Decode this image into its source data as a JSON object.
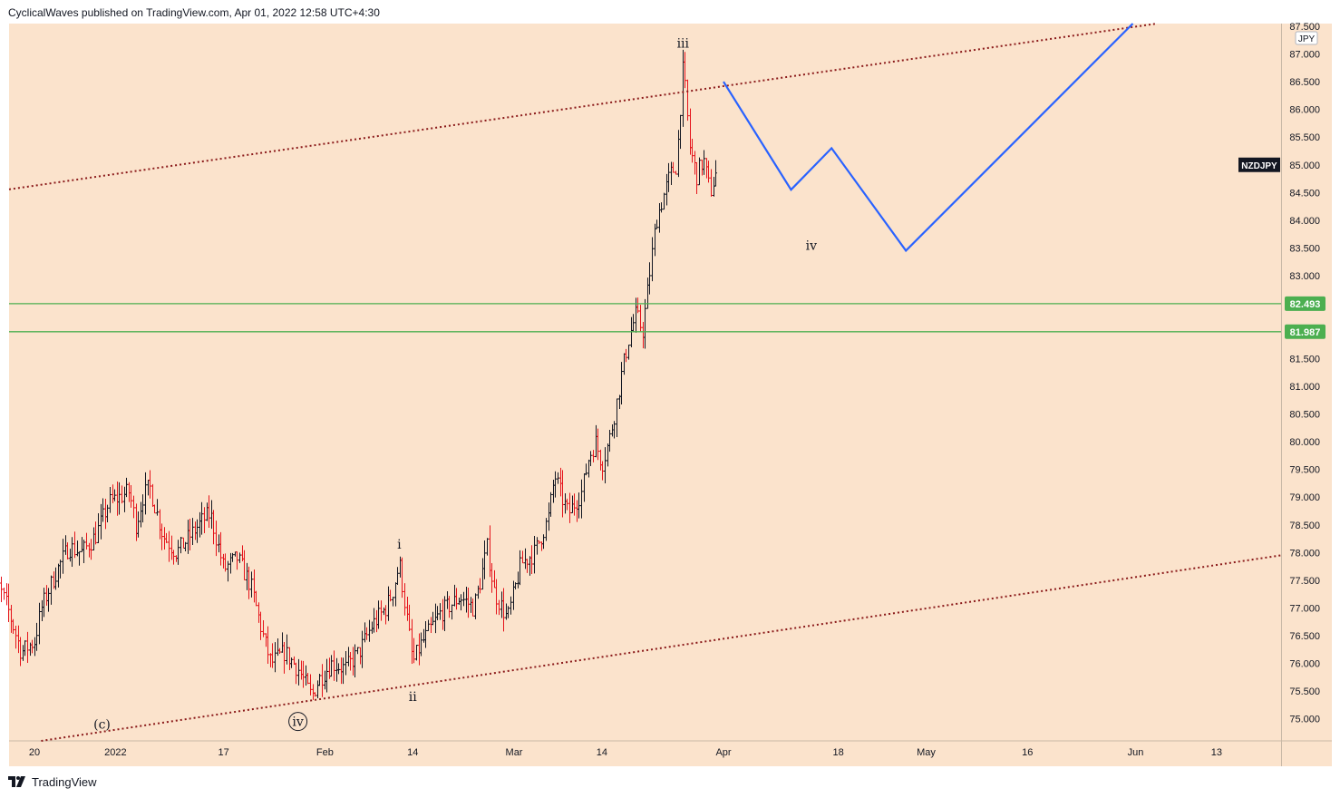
{
  "header": {
    "published": "CyclicalWaves published on TradingView.com, Apr 01, 2022 12:58 UTC+4:30"
  },
  "footer": {
    "brand": "TradingView",
    "logo_icon": "tradingview-logo-icon"
  },
  "colors": {
    "background": "#fbe3cc",
    "up_bar": "#131722",
    "down_bar": "#e5141b",
    "channel": "#8b1a1a",
    "support": "#4caf50",
    "projection": "#2962ff",
    "symbol_tag": "#131722"
  },
  "chart_data": {
    "type": "ohlc-bar",
    "symbol": "NZDJPY",
    "currency": "JPY",
    "ylim": [
      74.6,
      87.55
    ],
    "y_ticks": [
      75.0,
      75.5,
      76.0,
      76.5,
      77.0,
      77.5,
      78.0,
      78.5,
      79.0,
      79.5,
      80.0,
      80.5,
      81.0,
      81.5,
      82.0,
      82.5,
      83.0,
      83.5,
      84.0,
      84.5,
      85.0,
      85.5,
      86.0,
      86.5,
      87.0
    ],
    "y_top_partial_label": "87.500",
    "x_ticks": [
      {
        "label": "20",
        "date": "2021-12-20"
      },
      {
        "label": "2022",
        "date": "2022-01-01"
      },
      {
        "label": "17",
        "date": "2022-01-17"
      },
      {
        "label": "Feb",
        "date": "2022-02-01"
      },
      {
        "label": "14",
        "date": "2022-02-14"
      },
      {
        "label": "Mar",
        "date": "2022-03-01"
      },
      {
        "label": "14",
        "date": "2022-03-14"
      },
      {
        "label": "Apr",
        "date": "2022-04-01"
      },
      {
        "label": "18",
        "date": "2022-04-18"
      },
      {
        "label": "May",
        "date": "2022-05-01"
      },
      {
        "label": "16",
        "date": "2022-05-16"
      },
      {
        "label": "Jun",
        "date": "2022-06-01"
      },
      {
        "label": "13",
        "date": "2022-06-13"
      }
    ],
    "series_path": [
      [
        "2021-12-13",
        76.8
      ],
      [
        "2021-12-14",
        77.6
      ],
      [
        "2021-12-16",
        77.0
      ],
      [
        "2021-12-18",
        76.2
      ],
      [
        "2021-12-20",
        76.4
      ],
      [
        "2021-12-21",
        77.0
      ],
      [
        "2021-12-23",
        77.6
      ],
      [
        "2021-12-25",
        78.1
      ],
      [
        "2021-12-27",
        78.0
      ],
      [
        "2021-12-29",
        78.3
      ],
      [
        "2021-12-31",
        78.9
      ],
      [
        "2022-01-03",
        79.1
      ],
      [
        "2022-01-04",
        78.5
      ],
      [
        "2022-01-05",
        79.0
      ],
      [
        "2022-01-06",
        79.2
      ],
      [
        "2022-01-08",
        78.3
      ],
      [
        "2022-01-10",
        78.0
      ],
      [
        "2022-01-12",
        78.3
      ],
      [
        "2022-01-14",
        78.6
      ],
      [
        "2022-01-15",
        78.7
      ],
      [
        "2022-01-17",
        77.7
      ],
      [
        "2022-01-19",
        77.9
      ],
      [
        "2022-01-21",
        77.4
      ],
      [
        "2022-01-23",
        76.4
      ],
      [
        "2022-01-24",
        76.0
      ],
      [
        "2022-01-26",
        76.2
      ],
      [
        "2022-01-28",
        75.9
      ],
      [
        "2022-01-30",
        75.4
      ],
      [
        "2022-01-31",
        75.7
      ],
      [
        "2022-02-02",
        76.0
      ],
      [
        "2022-02-04",
        75.9
      ],
      [
        "2022-02-06",
        76.2
      ],
      [
        "2022-02-08",
        76.7
      ],
      [
        "2022-02-10",
        77.0
      ],
      [
        "2022-02-11",
        77.3
      ],
      [
        "2022-02-12",
        77.8
      ],
      [
        "2022-02-13",
        76.9
      ],
      [
        "2022-02-14",
        76.0
      ],
      [
        "2022-02-15",
        76.3
      ],
      [
        "2022-02-16",
        76.5
      ],
      [
        "2022-02-18",
        76.9
      ],
      [
        "2022-02-21",
        77.2
      ],
      [
        "2022-02-23",
        77.0
      ],
      [
        "2022-02-24",
        77.5
      ],
      [
        "2022-02-25",
        78.1
      ],
      [
        "2022-02-26",
        77.3
      ],
      [
        "2022-02-28",
        76.8
      ],
      [
        "2022-03-01",
        77.3
      ],
      [
        "2022-03-02",
        77.8
      ],
      [
        "2022-03-04",
        78.0
      ],
      [
        "2022-03-06",
        78.6
      ],
      [
        "2022-03-07",
        79.4
      ],
      [
        "2022-03-08",
        79.0
      ],
      [
        "2022-03-09",
        78.7
      ],
      [
        "2022-03-11",
        79.1
      ],
      [
        "2022-03-12",
        79.7
      ],
      [
        "2022-03-13",
        80.0
      ],
      [
        "2022-03-14",
        79.6
      ],
      [
        "2022-03-15",
        80.0
      ],
      [
        "2022-03-16",
        80.6
      ],
      [
        "2022-03-17",
        81.3
      ],
      [
        "2022-03-18",
        81.9
      ],
      [
        "2022-03-19",
        82.3
      ],
      [
        "2022-03-20",
        82.0
      ],
      [
        "2022-03-21",
        83.0
      ],
      [
        "2022-03-22",
        84.0
      ],
      [
        "2022-03-23",
        84.4
      ],
      [
        "2022-03-24",
        84.8
      ],
      [
        "2022-03-25",
        85.0
      ],
      [
        "2022-03-26",
        86.8
      ],
      [
        "2022-03-27",
        85.3
      ],
      [
        "2022-03-28",
        84.8
      ],
      [
        "2022-03-29",
        85.1
      ],
      [
        "2022-03-30",
        84.5
      ],
      [
        "2022-03-31",
        84.9
      ]
    ],
    "projection_path": [
      {
        "date": "2022-04-01",
        "y": 86.5
      },
      {
        "date": "2022-04-11",
        "y": 84.55
      },
      {
        "date": "2022-04-17",
        "y": 85.3
      },
      {
        "date": "2022-04-28",
        "y": 83.45
      },
      {
        "date": "2022-06-01",
        "y": 87.6
      }
    ],
    "channel_upper": [
      {
        "date": "2021-12-13",
        "y": 84.5
      },
      {
        "date": "2022-06-07",
        "y": 87.6
      }
    ],
    "channel_lower": [
      {
        "date": "2021-12-21",
        "y": 74.6
      },
      {
        "date": "2022-06-28",
        "y": 78.05
      }
    ],
    "horizontal_levels": [
      {
        "label": "82.493",
        "y": 82.493
      },
      {
        "label": "81.987",
        "y": 81.987
      }
    ],
    "wave_labels": [
      {
        "text": "(c)",
        "date": "2021-12-30",
        "y": 74.9,
        "circled": false
      },
      {
        "text": "iv",
        "date": "2022-01-28",
        "y": 74.95,
        "circled": true
      },
      {
        "text": "ii",
        "date": "2022-02-14",
        "y": 75.4,
        "circled": false
      },
      {
        "text": "i",
        "date": "2022-02-12",
        "y": 78.15,
        "circled": false
      },
      {
        "text": "iii",
        "date": "2022-03-26",
        "y": 87.2,
        "circled": false
      },
      {
        "text": "iv",
        "date": "2022-04-14",
        "y": 83.55,
        "circled": false
      }
    ],
    "symbol_tag": {
      "label": "NZDJPY",
      "y": 85.0
    }
  }
}
